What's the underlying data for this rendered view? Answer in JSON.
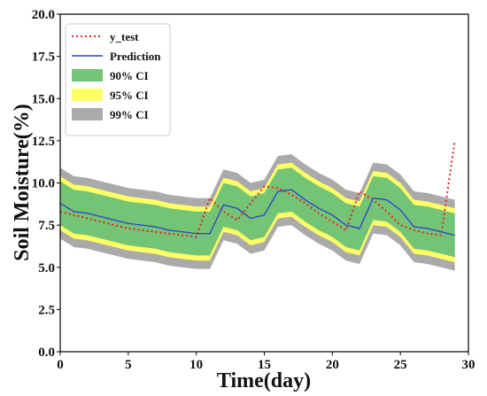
{
  "chart_data": {
    "type": "line",
    "title": "",
    "xlabel": "Time(day)",
    "ylabel": "Soil Moisture(%)",
    "xlim": [
      0,
      30
    ],
    "ylim": [
      0,
      20
    ],
    "xticks": [
      0,
      5,
      10,
      15,
      20,
      25,
      30
    ],
    "yticks": [
      0.0,
      2.5,
      5.0,
      7.5,
      10.0,
      12.5,
      15.0,
      17.5,
      20.0
    ],
    "xtick_labels": [
      "0",
      "5",
      "10",
      "15",
      "20",
      "25",
      "30"
    ],
    "ytick_labels": [
      "0.0",
      "2.5",
      "5.0",
      "7.5",
      "10.0",
      "12.5",
      "15.0",
      "17.5",
      "20.0"
    ],
    "grid": false,
    "legend_position": "top-left",
    "x": [
      0,
      1,
      2,
      3,
      4,
      5,
      6,
      7,
      8,
      9,
      10,
      11,
      12,
      13,
      14,
      15,
      16,
      17,
      18,
      19,
      20,
      21,
      22,
      23,
      24,
      25,
      26,
      27,
      28,
      29
    ],
    "series": [
      {
        "name": "y_test",
        "style": "dotted",
        "color": "#e8251c",
        "values": [
          8.3,
          8.1,
          7.9,
          7.7,
          7.5,
          7.3,
          7.2,
          7.1,
          7.0,
          6.9,
          6.8,
          9.1,
          8.3,
          7.8,
          8.8,
          9.8,
          9.7,
          9.3,
          8.8,
          8.2,
          7.7,
          7.2,
          9.5,
          9.0,
          8.3,
          7.5,
          7.2,
          7.0,
          6.9,
          12.5
        ]
      },
      {
        "name": "Prediction",
        "style": "solid",
        "color": "#2b3fd1",
        "values": [
          8.8,
          8.3,
          8.2,
          8.0,
          7.8,
          7.6,
          7.5,
          7.4,
          7.2,
          7.1,
          7.0,
          7.0,
          8.7,
          8.5,
          7.9,
          8.1,
          9.5,
          9.6,
          9.0,
          8.5,
          8.1,
          7.5,
          7.3,
          9.1,
          9.0,
          8.4,
          7.4,
          7.3,
          7.1,
          6.9
        ]
      }
    ],
    "bands": [
      {
        "name": "99% CI",
        "color": "#aaaaaa",
        "lower": [
          6.7,
          6.2,
          6.1,
          5.9,
          5.7,
          5.5,
          5.4,
          5.3,
          5.1,
          5.0,
          4.9,
          4.9,
          6.6,
          6.4,
          5.8,
          6.0,
          7.4,
          7.5,
          6.9,
          6.4,
          6.0,
          5.4,
          5.2,
          7.0,
          6.9,
          6.3,
          5.3,
          5.2,
          5.0,
          4.8
        ],
        "upper": [
          10.9,
          10.4,
          10.3,
          10.1,
          9.9,
          9.7,
          9.6,
          9.5,
          9.3,
          9.2,
          9.1,
          9.1,
          10.8,
          10.6,
          10.0,
          10.2,
          11.6,
          11.7,
          11.1,
          10.6,
          10.2,
          9.6,
          9.4,
          11.2,
          11.1,
          10.5,
          9.5,
          9.4,
          9.2,
          9.0
        ]
      },
      {
        "name": "95% CI",
        "color": "#ffff66",
        "lower": [
          7.2,
          6.7,
          6.6,
          6.4,
          6.2,
          6.0,
          5.9,
          5.8,
          5.6,
          5.5,
          5.4,
          5.4,
          7.1,
          6.9,
          6.3,
          6.5,
          7.9,
          8.0,
          7.4,
          6.9,
          6.5,
          5.9,
          5.7,
          7.5,
          7.4,
          6.8,
          5.8,
          5.7,
          5.5,
          5.3
        ],
        "upper": [
          10.4,
          9.9,
          9.8,
          9.6,
          9.4,
          9.2,
          9.1,
          9.0,
          8.8,
          8.7,
          8.6,
          8.6,
          10.3,
          10.1,
          9.5,
          9.7,
          11.1,
          11.2,
          10.6,
          10.1,
          9.7,
          9.1,
          8.9,
          10.7,
          10.6,
          10.0,
          9.0,
          8.9,
          8.7,
          8.5
        ]
      },
      {
        "name": "90% CI",
        "color": "#74c476",
        "lower": [
          7.5,
          7.0,
          6.9,
          6.7,
          6.5,
          6.3,
          6.2,
          6.1,
          5.9,
          5.8,
          5.7,
          5.7,
          7.4,
          7.2,
          6.6,
          6.8,
          8.2,
          8.3,
          7.7,
          7.2,
          6.8,
          6.2,
          6.0,
          7.8,
          7.7,
          7.1,
          6.1,
          6.0,
          5.8,
          5.6
        ],
        "upper": [
          10.1,
          9.6,
          9.5,
          9.3,
          9.1,
          8.9,
          8.8,
          8.7,
          8.5,
          8.4,
          8.3,
          8.3,
          10.0,
          9.8,
          9.2,
          9.4,
          10.8,
          10.9,
          10.3,
          9.8,
          9.4,
          8.8,
          8.6,
          10.4,
          10.3,
          9.7,
          8.7,
          8.6,
          8.4,
          8.2
        ]
      }
    ],
    "legend": [
      "y_test",
      "Prediction",
      "90% CI",
      "95% CI",
      "99% CI"
    ]
  }
}
